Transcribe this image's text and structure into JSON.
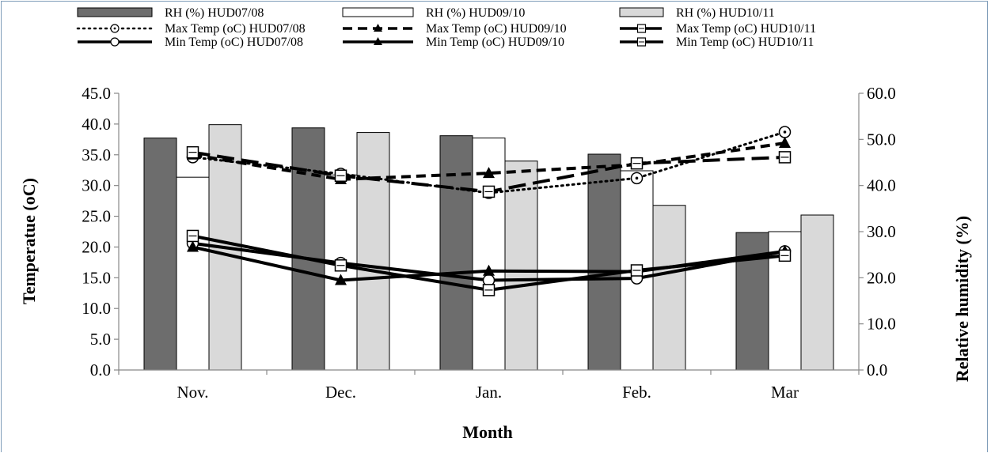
{
  "chart_data": {
    "type": "bar",
    "title": "",
    "xlabel": "Month",
    "ylabel": "Temperatue  (oC)",
    "y2label": "Relative humidity (%)",
    "categories": [
      "Nov.",
      "Dec.",
      "Jan.",
      "Feb.",
      "Mar"
    ],
    "ylim": [
      0,
      45
    ],
    "y_ticks": [
      "0.0",
      "5.0",
      "10.0",
      "15.0",
      "20.0",
      "25.0",
      "30.0",
      "35.0",
      "40.0",
      "45.0"
    ],
    "y2lim": [
      0,
      60
    ],
    "y2_ticks": [
      "0.0",
      "10.0",
      "20.0",
      "30.0",
      "40.0",
      "50.0",
      "60.0"
    ],
    "legend_position": "top",
    "bar_series": [
      {
        "name": "RH (%) HUD07/08",
        "axis": "right",
        "color": "#6d6d6d",
        "values": [
          50.3,
          52.5,
          50.8,
          46.8,
          29.8
        ]
      },
      {
        "name": "RH (%) HUD09/10",
        "axis": "right",
        "color": "#ffffff",
        "values": [
          41.8,
          42.3,
          50.3,
          43.2,
          30.0
        ]
      },
      {
        "name": "RH (%) HUD10/11",
        "axis": "right",
        "color": "#d9d9d9",
        "values": [
          53.2,
          51.5,
          45.3,
          35.7,
          33.6
        ]
      }
    ],
    "line_series": [
      {
        "name": "Max Temp (oC) HUD07/08",
        "axis": "left",
        "style": "dotted",
        "marker": "circle-dot",
        "values": [
          34.6,
          31.9,
          28.8,
          31.2,
          38.7
        ]
      },
      {
        "name": "Max Temp (oC) HUD09/10",
        "axis": "left",
        "style": "dashed",
        "marker": "triangle",
        "values": [
          35.0,
          31.0,
          32.0,
          33.4,
          36.9
        ]
      },
      {
        "name": "Max Temp (oC) HUD10/11",
        "axis": "left",
        "style": "longdash",
        "marker": "square",
        "values": [
          35.4,
          31.6,
          29.0,
          33.6,
          34.6
        ]
      },
      {
        "name": "Min Temp (oC) HUD07/08",
        "axis": "left",
        "style": "solid",
        "marker": "circle",
        "values": [
          20.6,
          17.4,
          14.6,
          14.9,
          19.3
        ]
      },
      {
        "name": "Min Temp (oC) HUD09/10",
        "axis": "left",
        "style": "solid",
        "marker": "triangle",
        "values": [
          20.0,
          14.6,
          16.1,
          16.0,
          19.3
        ]
      },
      {
        "name": "Min Temp (oC) HUD10/11",
        "axis": "left",
        "style": "solid",
        "marker": "square",
        "values": [
          21.8,
          17.0,
          13.0,
          16.2,
          18.6
        ]
      }
    ]
  }
}
